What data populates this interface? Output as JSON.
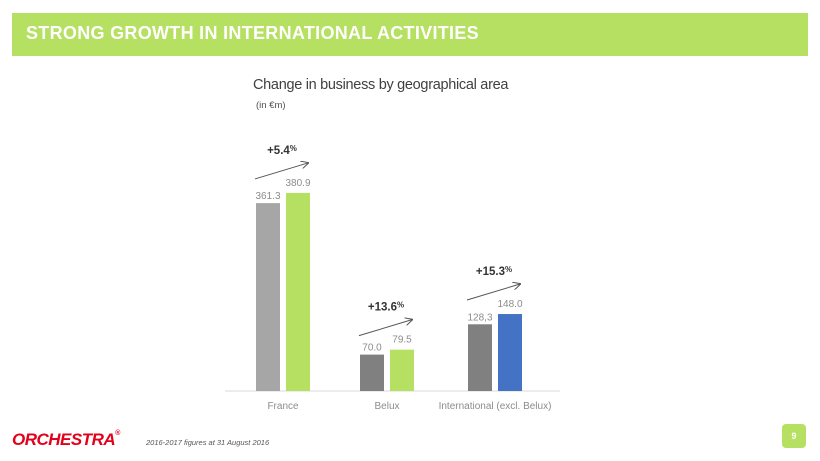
{
  "header": {
    "title": "STRONG GROWTH IN INTERNATIONAL ACTIVITIES"
  },
  "chart_data": {
    "type": "bar",
    "title": "Change in business by geographical area",
    "unit": "(in €m)",
    "categories": [
      "France",
      "Belux",
      "International (excl. Belux)"
    ],
    "series": [
      {
        "values": [
          361.3,
          70.0,
          128.3
        ],
        "labels": [
          "361.3",
          "70.0",
          "128,3"
        ]
      },
      {
        "values": [
          380.9,
          79.5,
          148.0
        ],
        "labels": [
          "380.9",
          "79.5",
          "148.0"
        ]
      }
    ],
    "growth": [
      {
        "value": "+5.4",
        "suffix": "%"
      },
      {
        "value": "+13.6",
        "suffix": "%"
      },
      {
        "value": "+15.3",
        "suffix": "%"
      }
    ],
    "ylim": [
      0,
      400
    ],
    "colors": {
      "previous": [
        "#a6a6a6",
        "#808080",
        "#808080"
      ],
      "current": [
        "#b5e061",
        "#b5e061",
        "#4472c4"
      ],
      "accent": "#b5e061"
    }
  },
  "footer": {
    "logo": "ORCHESTRA",
    "logo_mark": "®",
    "note": "2016-2017 figures at 31 August 2016",
    "page": "9"
  }
}
